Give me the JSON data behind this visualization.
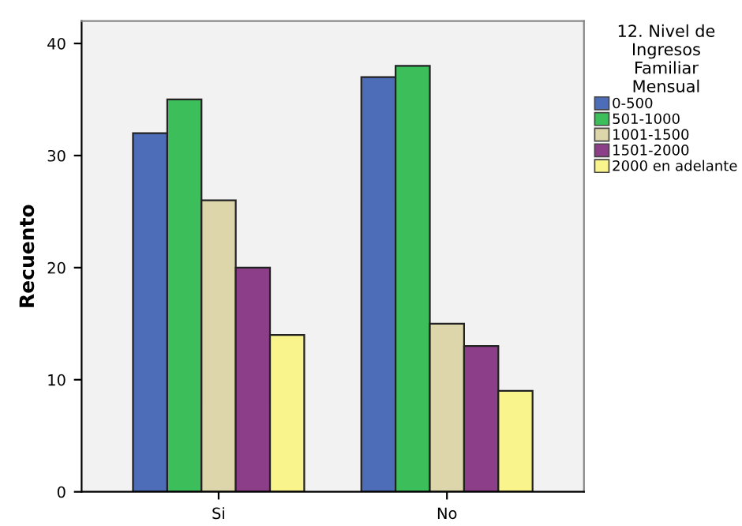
{
  "chart_data": {
    "type": "bar",
    "ylabel": "Recuento",
    "legend_title": "12. Nivel de\nIngresos\nFamiliar\nMensual",
    "categories": [
      "Si",
      "No"
    ],
    "series": [
      {
        "name": "0-500",
        "color": "#4e6db8",
        "values": [
          32,
          37
        ]
      },
      {
        "name": "501-1000",
        "color": "#3cbf5a",
        "values": [
          35,
          38
        ]
      },
      {
        "name": "1001-1500",
        "color": "#dcd6aa",
        "values": [
          26,
          15
        ]
      },
      {
        "name": "1501-2000",
        "color": "#8c3f88",
        "values": [
          20,
          13
        ]
      },
      {
        "name": "2000 en adelante",
        "color": "#f9f48c",
        "values": [
          14,
          9
        ]
      }
    ],
    "ylim": [
      0,
      42
    ],
    "yticks": [
      0,
      10,
      20,
      30,
      40
    ],
    "grid": false,
    "legend": "right"
  }
}
